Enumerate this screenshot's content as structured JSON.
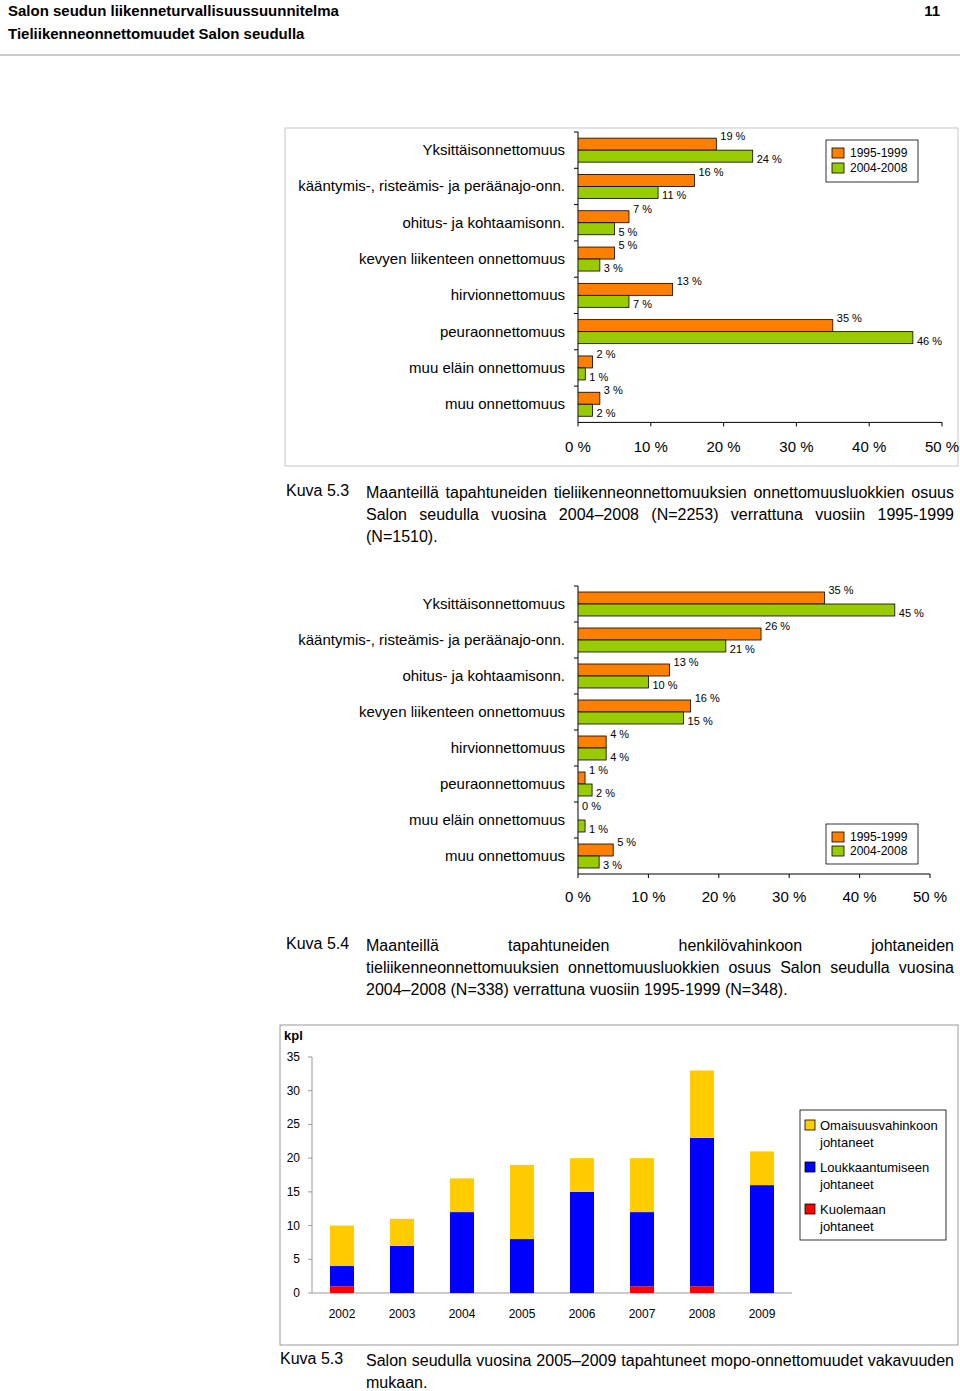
{
  "header": {
    "title": "Salon seudun liikenneturvallisuussuunnitelma",
    "page": "11",
    "subtitle": "Tieliikenneonnettomuudet Salon seudulla"
  },
  "chart_data": [
    {
      "type": "bar",
      "orientation": "horizontal",
      "subtitle": "Kuva 5.3",
      "title": "Maanteillä tapahtuneiden tieliikenneonnettomuuksien onnettomuusluokkien osuus Salon seudulla vuosina 2004–2008 (N=2253) verrattuna vuosiin 1995-1999 (N=1510).",
      "categories": [
        "Yksittäisonnettomuus",
        "kääntymis-, risteämis- ja peräänajo-onn.",
        "ohitus- ja kohtaamisonn.",
        "kevyen liikenteen onnettomuus",
        "hirvionnettomuus",
        "peuraonnettomuus",
        "muu eläin onnettomuus",
        "muu onnettomuus"
      ],
      "series": [
        {
          "name": "1995-1999",
          "color": "#ff8000",
          "values": [
            19,
            16,
            7,
            5,
            13,
            35,
            2,
            3
          ],
          "value_labels": [
            "19 %",
            "16 %",
            "7 %",
            "5 %",
            "13 %",
            "35 %",
            "2 %",
            "3 %"
          ]
        },
        {
          "name": "2004-2008",
          "color": "#99cc00",
          "values": [
            24,
            11,
            5,
            3,
            7,
            46,
            1,
            2
          ],
          "value_labels": [
            "24 %",
            "11 %",
            "5 %",
            "3 %",
            "7 %",
            "46 %",
            "1 %",
            "2 %"
          ]
        }
      ],
      "xlim": [
        0,
        50
      ],
      "xticks": [
        {
          "value": 0,
          "label": "0 %"
        },
        {
          "value": 10,
          "label": "10 %"
        },
        {
          "value": 20,
          "label": "20 %"
        },
        {
          "value": 30,
          "label": "30 %"
        },
        {
          "value": 40,
          "label": "40 %"
        },
        {
          "value": 50,
          "label": "50 %"
        }
      ],
      "data_labels": true,
      "legend": "upper right",
      "grid": false
    },
    {
      "type": "bar",
      "orientation": "horizontal",
      "subtitle": "Kuva 5.4",
      "title": "Maanteillä tapahtuneiden henkilövahinkoon johtaneiden tieliikenneonnettomuuksien onnettomuusluokkien osuus Salon seudulla vuosina 2004–2008 (N=338) verrattuna vuosiin 1995-1999 (N=348).",
      "categories": [
        "Yksittäisonnettomuus",
        "kääntymis-, risteämis- ja peräänajo-onn.",
        "ohitus- ja kohtaamisonn.",
        "kevyen liikenteen onnettomuus",
        "hirvionnettomuus",
        "peuraonnettomuus",
        "muu eläin onnettomuus",
        "muu onnettomuus"
      ],
      "series": [
        {
          "name": "1995-1999",
          "color": "#ff8000",
          "values": [
            35,
            26,
            13,
            16,
            4,
            1,
            0,
            5
          ],
          "value_labels": [
            "35 %",
            "26 %",
            "13 %",
            "16 %",
            "4 %",
            "1 %",
            "0 %",
            "5 %"
          ]
        },
        {
          "name": "2004-2008",
          "color": "#99cc00",
          "values": [
            45,
            21,
            10,
            15,
            4,
            2,
            1,
            3
          ],
          "value_labels": [
            "45 %",
            "21 %",
            "10 %",
            "15 %",
            "4 %",
            "2 %",
            "1 %",
            "3 %"
          ]
        }
      ],
      "xlim": [
        0,
        50
      ],
      "xticks": [
        {
          "value": 0,
          "label": "0 %"
        },
        {
          "value": 10,
          "label": "10 %"
        },
        {
          "value": 20,
          "label": "20 %"
        },
        {
          "value": 30,
          "label": "30 %"
        },
        {
          "value": 40,
          "label": "40 %"
        },
        {
          "value": 50,
          "label": "50 %"
        }
      ],
      "data_labels": true,
      "legend": "lower right",
      "grid": false
    },
    {
      "type": "bar",
      "stacked": true,
      "subtitle": "Kuva 5.3",
      "title": "Salon seudulla vuosina 2005–2009 tapahtuneet mopo-onnettomuudet vakavuuden mukaan.",
      "ylabel": "kpl",
      "categories": [
        "2002",
        "2003",
        "2004",
        "2005",
        "2006",
        "2007",
        "2008",
        "2009"
      ],
      "series": [
        {
          "name": "Kuolemaan johtaneet",
          "color": "#ff0000",
          "values": [
            1,
            0,
            0,
            0,
            0,
            1,
            1,
            0
          ]
        },
        {
          "name": "Loukkaantumiseen johtaneet",
          "color": "#0000ff",
          "values": [
            3,
            7,
            12,
            8,
            15,
            11,
            22,
            16
          ]
        },
        {
          "name": "Omaisuusvahinkoon johtaneet",
          "color": "#ffcc00",
          "values": [
            6,
            4,
            5,
            11,
            5,
            8,
            10,
            5
          ]
        }
      ],
      "ylim": [
        0,
        35
      ],
      "yticks": [
        0,
        5,
        10,
        15,
        20,
        25,
        30,
        35
      ],
      "legend": "right",
      "grid": false
    }
  ]
}
